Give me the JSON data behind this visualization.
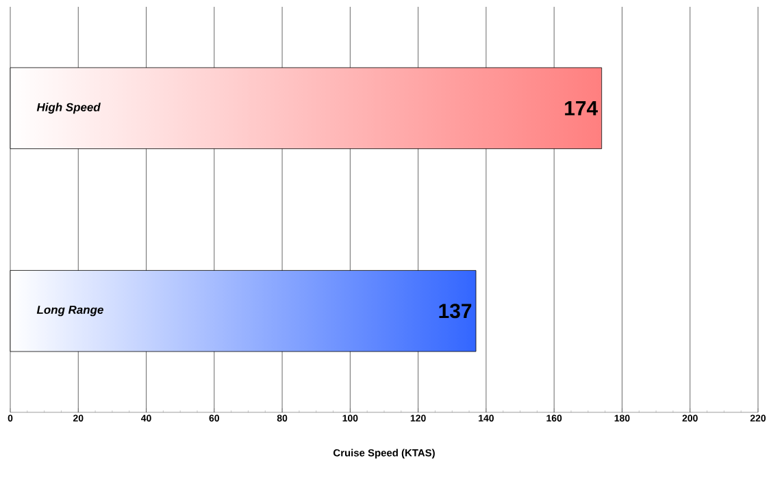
{
  "chart_data": {
    "type": "bar",
    "orientation": "horizontal",
    "xlabel": "Cruise Speed (KTAS)",
    "categories": [
      "High Speed",
      "Long Range"
    ],
    "values": [
      174,
      137
    ],
    "colors": [
      "#ff7f7f",
      "#3366ff"
    ],
    "xlim": [
      0,
      220
    ],
    "xticks": [
      0,
      20,
      40,
      60,
      80,
      100,
      120,
      140,
      160,
      180,
      200,
      220
    ],
    "grid": "x",
    "data_labels": true
  }
}
